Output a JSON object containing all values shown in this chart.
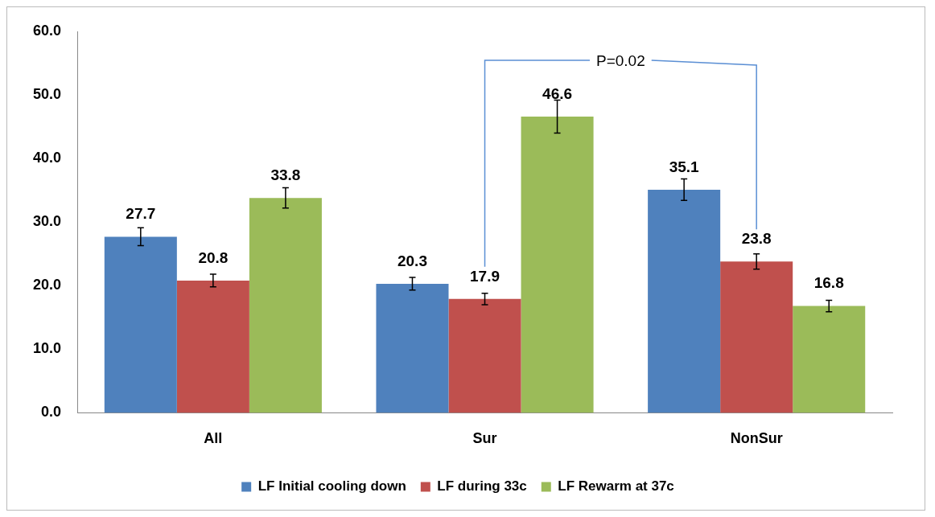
{
  "chart_data": {
    "type": "bar",
    "categories": [
      "All",
      "Sur",
      "NonSur"
    ],
    "series": [
      {
        "name": "LF Initial cooling down",
        "color": "#4f81bd",
        "values": [
          27.7,
          20.3,
          35.1
        ],
        "errors": [
          1.4,
          1.0,
          1.7
        ]
      },
      {
        "name": "LF during 33c",
        "color": "#c0504d",
        "values": [
          20.8,
          17.9,
          23.8
        ],
        "errors": [
          1.0,
          0.9,
          1.2
        ]
      },
      {
        "name": "LF Rewarm at 37c",
        "color": "#9bbb59",
        "values": [
          33.8,
          46.6,
          16.8
        ],
        "errors": [
          1.6,
          2.6,
          0.9
        ]
      }
    ],
    "ylim": [
      0,
      60
    ],
    "yticks": [
      {
        "value": 0,
        "label": "0.0"
      },
      {
        "value": 10,
        "label": "10.0"
      },
      {
        "value": 20,
        "label": "20.0"
      },
      {
        "value": 30,
        "label": "30.0"
      },
      {
        "value": 40,
        "label": "40.0"
      },
      {
        "value": 50,
        "label": "50.0"
      },
      {
        "value": 60,
        "label": "60.0"
      }
    ],
    "data_labels": true,
    "grid": false,
    "legend": "bottom",
    "annotations": [
      "P=0.02"
    ]
  }
}
